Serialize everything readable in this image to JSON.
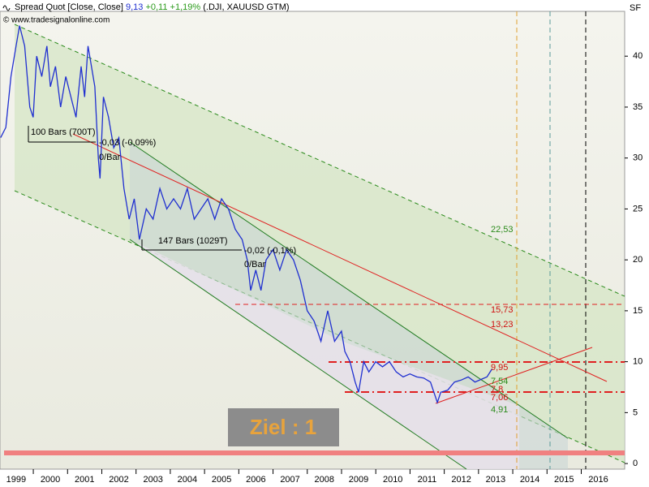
{
  "chart_data": {
    "type": "line",
    "header": {
      "title": "Spread Quot [Close, Close]",
      "last": "9,13",
      "change": "+0,11",
      "change_pct": "+1,19%",
      "symbols": "(.DJI, XAUUSD GTM)"
    },
    "source": "© www.tradesignalonline.com",
    "y_axis_label": "SF",
    "target": "Ziel : 1",
    "xlim": [
      1998.53,
      2016.77
    ],
    "ylim": [
      -0.55,
      44.4
    ],
    "xticks": [
      1999,
      2000,
      2001,
      2002,
      2003,
      2004,
      2005,
      2006,
      2007,
      2008,
      2009,
      2010,
      2011,
      2012,
      2013,
      2014,
      2015,
      2016
    ],
    "yticks": [
      0,
      5,
      10,
      15,
      20,
      25,
      30,
      35,
      40
    ],
    "x": [
      1998.55,
      1998.7,
      1998.85,
      1999.0,
      1999.1,
      1999.25,
      1999.4,
      1999.5,
      1999.6,
      1999.75,
      1999.9,
      2000.0,
      2000.15,
      2000.3,
      2000.45,
      2000.6,
      2000.75,
      2000.9,
      2001.0,
      2001.1,
      2001.3,
      2001.4,
      2001.45,
      2001.55,
      2001.7,
      2001.85,
      2002.0,
      2002.15,
      2002.3,
      2002.45,
      2002.6,
      2002.8,
      2003.0,
      2003.2,
      2003.4,
      2003.6,
      2003.8,
      2004.0,
      2004.2,
      2004.4,
      2004.6,
      2004.8,
      2005.0,
      2005.2,
      2005.4,
      2005.6,
      2005.75,
      2005.85,
      2006.0,
      2006.15,
      2006.3,
      2006.5,
      2006.7,
      2006.9,
      2007.1,
      2007.3,
      2007.5,
      2007.7,
      2007.9,
      2008.1,
      2008.3,
      2008.5,
      2008.6,
      2008.75,
      2008.9,
      2009.0,
      2009.15,
      2009.3,
      2009.5,
      2009.7,
      2009.9,
      2010.1,
      2010.3,
      2010.5,
      2010.7,
      2010.9,
      2011.1,
      2011.3,
      2011.4,
      2011.6,
      2011.8,
      2012.0,
      2012.2,
      2012.4,
      2012.6,
      2012.75,
      2012.9
    ],
    "series": [
      {
        "name": "Spread Quot",
        "color": "#1f2fd0",
        "values": [
          32,
          33,
          38,
          41,
          43,
          41,
          35,
          34,
          40,
          38,
          41,
          37,
          39,
          35,
          38,
          36,
          34,
          39,
          36,
          41,
          37,
          30,
          28,
          36,
          34,
          31,
          32,
          27,
          24,
          26,
          22,
          25,
          24,
          27,
          25,
          26,
          25,
          27,
          24,
          25,
          26,
          24,
          26,
          25,
          23,
          22,
          20,
          17,
          19,
          17,
          20,
          21,
          19,
          21,
          20,
          18,
          15,
          14,
          12,
          15,
          12,
          13,
          11,
          10,
          8,
          7,
          10,
          9,
          10,
          9.5,
          10,
          9,
          8.5,
          8.8,
          8.5,
          8.4,
          8,
          6,
          7,
          7.2,
          8,
          8.2,
          8.5,
          8,
          8.3,
          8.5,
          9.3
        ]
      }
    ],
    "annotations": [
      {
        "text": "100 Bars (700T)",
        "color": "#000000"
      },
      {
        "text": "-0,03 (-0,09%)",
        "color": "#000000"
      },
      {
        "text": "0/Bar",
        "color": "#000000"
      },
      {
        "text": "147 Bars (1029T)",
        "color": "#000000"
      },
      {
        "text": "-0,02 (-0,1%)",
        "color": "#000000"
      },
      {
        "text": "0/Bar",
        "color": "#000000"
      },
      {
        "text": "22,53",
        "color": "#2a8a1a"
      },
      {
        "text": "15,73",
        "color": "#d01010"
      },
      {
        "text": "13,23",
        "color": "#d01010"
      },
      {
        "text": "9,95",
        "color": "#d01010"
      },
      {
        "text": "7,54",
        "color": "#2a8a1a"
      },
      {
        "text": "7,8",
        "color": "#d01010"
      },
      {
        "text": "7,06",
        "color": "#d01010"
      },
      {
        "text": "4,91",
        "color": "#2a8a1a"
      }
    ]
  }
}
